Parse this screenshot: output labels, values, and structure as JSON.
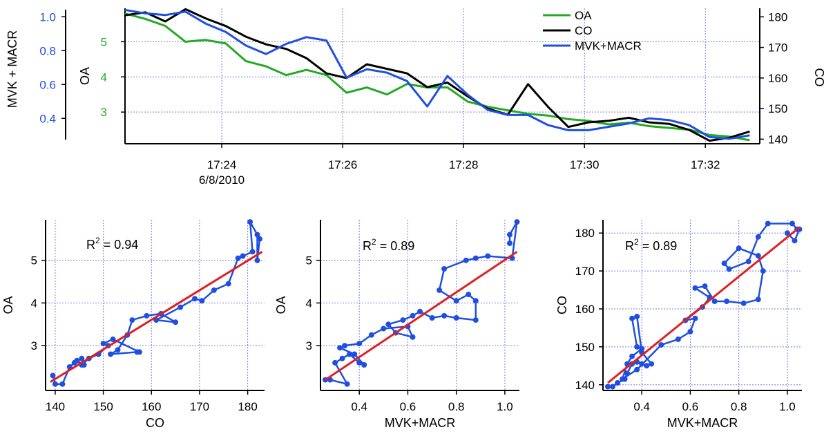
{
  "colors": {
    "oa": "#22aa22",
    "co": "#000000",
    "mvk": "#1f4fe0",
    "fit": "#e02020",
    "grid": "#7a7ae6",
    "axis": "#000000"
  },
  "chart_data": [
    {
      "id": "timeseries",
      "type": "line",
      "x_ticks": [
        {
          "t": "17:24",
          "sub": "6/8/2010"
        },
        {
          "t": "17:26",
          "sub": ""
        },
        {
          "t": "17:28",
          "sub": ""
        },
        {
          "t": "17:30",
          "sub": ""
        },
        {
          "t": "17:32",
          "sub": ""
        }
      ],
      "xlim": [
        "17:22:24",
        "17:32:54"
      ],
      "x_times": [
        "17:22:24",
        "17:22:44",
        "17:23:04",
        "17:23:24",
        "17:23:44",
        "17:24:04",
        "17:24:24",
        "17:24:44",
        "17:25:04",
        "17:25:24",
        "17:25:44",
        "17:26:04",
        "17:26:24",
        "17:26:44",
        "17:27:04",
        "17:27:24",
        "17:27:44",
        "17:28:04",
        "17:28:24",
        "17:28:44",
        "17:29:04",
        "17:29:24",
        "17:29:44",
        "17:30:04",
        "17:30:24",
        "17:30:44",
        "17:31:04",
        "17:31:24",
        "17:31:44",
        "17:32:04",
        "17:32:24",
        "17:32:44"
      ],
      "axes": {
        "OA": {
          "label": "OA",
          "ticks": [
            "3",
            "4",
            "5"
          ],
          "ylim": [
            2.1,
            5.95
          ]
        },
        "CO": {
          "label": "CO",
          "ticks": [
            "140",
            "150",
            "160",
            "170",
            "180"
          ],
          "ylim": [
            138.5,
            182.8
          ]
        },
        "MVK": {
          "label": "MVK + MACR",
          "ticks": [
            "0.4",
            "0.6",
            "0.8",
            "1.0"
          ],
          "ylim": [
            0.25,
            1.05
          ]
        }
      },
      "series": [
        {
          "name": "OA",
          "axis": "OA",
          "values": [
            5.8,
            5.65,
            5.45,
            5.0,
            5.05,
            4.95,
            4.45,
            4.3,
            4.05,
            4.2,
            4.05,
            3.55,
            3.7,
            3.5,
            3.8,
            3.7,
            3.7,
            3.3,
            3.15,
            3.05,
            2.95,
            2.9,
            2.8,
            2.75,
            2.65,
            2.7,
            2.6,
            2.55,
            2.5,
            2.35,
            2.3,
            2.2
          ]
        },
        {
          "name": "CO",
          "axis": "CO",
          "values": [
            180.5,
            181.5,
            178.5,
            182.5,
            179.5,
            177.0,
            173.5,
            171.0,
            169.5,
            166.5,
            161.5,
            160.0,
            164.5,
            163.0,
            161.5,
            157.0,
            158.5,
            154.0,
            150.0,
            148.0,
            158.0,
            150.5,
            144.0,
            145.5,
            146.0,
            147.0,
            145.5,
            145.0,
            143.0,
            139.5,
            140.5,
            142.5
          ]
        },
        {
          "name": "MVK+MACR",
          "axis": "MVK",
          "values": [
            1.04,
            1.02,
            1.01,
            1.03,
            0.96,
            0.91,
            0.83,
            0.78,
            0.84,
            0.88,
            0.86,
            0.64,
            0.69,
            0.67,
            0.62,
            0.47,
            0.65,
            0.54,
            0.45,
            0.42,
            0.42,
            0.36,
            0.33,
            0.33,
            0.35,
            0.37,
            0.4,
            0.39,
            0.36,
            0.29,
            0.28,
            0.3
          ]
        }
      ],
      "legend": [
        "OA",
        "CO",
        "MVK+MACR"
      ],
      "legend_position": "top-right"
    },
    {
      "id": "oa-vs-co",
      "type": "scatter",
      "xlabel": "CO",
      "ylabel": "OA",
      "x_ticks": [
        "140",
        "150",
        "160",
        "170",
        "180"
      ],
      "y_ticks": [
        "3",
        "4",
        "5"
      ],
      "xlim": [
        138,
        183.5
      ],
      "ylim": [
        1.95,
        5.95
      ],
      "annotation": {
        "text": "R",
        "sup": "2",
        "rest": " = 0.94"
      },
      "x": [
        139.5,
        140.0,
        141.5,
        143.0,
        144.0,
        145.5,
        146.0,
        144.5,
        145.5,
        147.0,
        149.0,
        151.0,
        150.0,
        152.0,
        157.5,
        157.0,
        151.5,
        153.0,
        155.0,
        156.0,
        159.0,
        162.0,
        165.0,
        161.0,
        166.0,
        169.0,
        170.5,
        173.0,
        176.0,
        178.0,
        179.0,
        181.0,
        180.5,
        182.0,
        182.0,
        182.5
      ],
      "y": [
        2.3,
        2.1,
        2.1,
        2.5,
        2.6,
        2.7,
        2.55,
        2.65,
        2.55,
        2.7,
        2.8,
        3.0,
        3.05,
        3.15,
        2.85,
        2.85,
        2.8,
        2.9,
        3.25,
        3.6,
        3.7,
        3.75,
        3.55,
        3.6,
        3.9,
        4.1,
        4.05,
        4.3,
        4.45,
        5.05,
        5.1,
        5.2,
        5.9,
        5.6,
        5.0,
        5.5
      ],
      "fit": {
        "x": [
          139,
          183
        ],
        "y": [
          2.15,
          5.2
        ]
      }
    },
    {
      "id": "oa-vs-mvk",
      "type": "scatter",
      "xlabel": "MVK+MACR",
      "ylabel": "OA",
      "x_ticks": [
        "0.4",
        "0.6",
        "0.8",
        "1.0"
      ],
      "y_ticks": [
        "3",
        "4",
        "5"
      ],
      "xlim": [
        0.24,
        1.06
      ],
      "ylim": [
        1.95,
        5.95
      ],
      "annotation": {
        "text": "R",
        "sup": "2",
        "rest": " = 0.89"
      },
      "x": [
        0.26,
        0.28,
        0.35,
        0.3,
        0.33,
        0.36,
        0.4,
        0.42,
        0.38,
        0.32,
        0.34,
        0.4,
        0.45,
        0.5,
        0.6,
        0.62,
        0.55,
        0.52,
        0.58,
        0.62,
        0.65,
        0.7,
        0.75,
        0.8,
        0.88,
        0.88,
        0.85,
        0.8,
        0.73,
        0.75,
        0.84,
        0.88,
        0.93,
        1.03,
        1.05,
        1.02,
        1.02
      ],
      "y": [
        2.2,
        2.2,
        2.1,
        2.6,
        2.7,
        2.8,
        2.6,
        2.55,
        2.8,
        2.95,
        3.0,
        3.05,
        3.25,
        3.4,
        3.45,
        3.2,
        3.3,
        3.5,
        3.6,
        3.7,
        3.8,
        3.65,
        3.7,
        3.65,
        3.6,
        4.05,
        4.2,
        4.05,
        4.3,
        4.8,
        5.0,
        5.05,
        5.1,
        5.05,
        5.9,
        5.6,
        5.4
      ],
      "fit": {
        "x": [
          0.26,
          1.05
        ],
        "y": [
          2.2,
          5.2
        ]
      }
    },
    {
      "id": "co-vs-mvk",
      "type": "scatter",
      "xlabel": "MVK+MACR",
      "ylabel": "CO",
      "x_ticks": [
        "0.4",
        "0.6",
        "0.8",
        "1.0"
      ],
      "y_ticks": [
        "140",
        "150",
        "160",
        "170",
        "180"
      ],
      "xlim": [
        0.24,
        1.06
      ],
      "ylim": [
        138.5,
        183.5
      ],
      "annotation": {
        "text": "R",
        "sup": "2",
        "rest": " = 0.89"
      },
      "x": [
        0.26,
        0.28,
        0.3,
        0.33,
        0.34,
        0.36,
        0.38,
        0.4,
        0.42,
        0.44,
        0.4,
        0.38,
        0.36,
        0.38,
        0.4,
        0.36,
        0.34,
        0.32,
        0.38,
        0.48,
        0.55,
        0.6,
        0.62,
        0.58,
        0.65,
        0.68,
        0.62,
        0.66,
        0.7,
        0.75,
        0.82,
        0.88,
        0.9,
        0.88,
        0.8,
        0.74,
        0.76,
        0.84,
        0.88,
        0.92,
        1.02,
        1.04,
        1.05,
        1.03,
        1.0
      ],
      "y": [
        139.5,
        139.5,
        140.5,
        141.5,
        143.0,
        145.5,
        146.0,
        145.5,
        145.0,
        145.5,
        148.5,
        158.0,
        157.5,
        150.0,
        149.5,
        147.5,
        145.5,
        141.5,
        144.0,
        150.5,
        152.0,
        154.0,
        157.5,
        157.0,
        160.5,
        163.0,
        165.5,
        166.0,
        162.0,
        162.0,
        161.5,
        162.5,
        170.0,
        174.0,
        176.0,
        172.0,
        170.5,
        172.5,
        179.0,
        182.5,
        182.5,
        181.0,
        181.0,
        178.0,
        180.0
      ],
      "fit": {
        "x": [
          0.26,
          1.05
        ],
        "y": [
          140.5,
          181.5
        ]
      }
    }
  ]
}
